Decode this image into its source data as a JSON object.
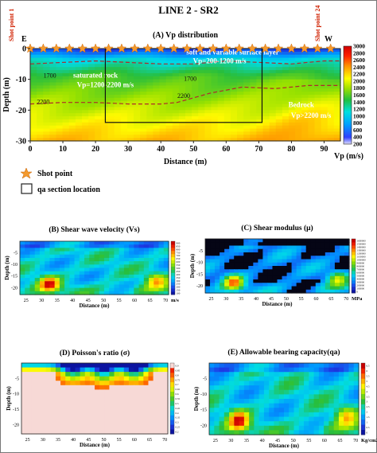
{
  "figure": {
    "title": "LINE 2 - SR2",
    "shot_point_start": "Shot point 1",
    "shot_point_end": "Shot point 24",
    "direction_left": "E",
    "direction_right": "W",
    "legend_shot": "Shot point",
    "legend_section": "qa section location"
  },
  "chart_data": [
    {
      "id": "A",
      "type": "heatmap",
      "title": "(A) Vp distribution",
      "xlabel": "Distance (m)",
      "ylabel": "Depth (m)",
      "colorbar_label": "Vp (m/s)",
      "xlim": [
        0,
        95
      ],
      "ylim": [
        -30,
        0
      ],
      "xticks": [
        0,
        10,
        20,
        30,
        40,
        50,
        60,
        70,
        80,
        90
      ],
      "yticks": [
        0,
        -10,
        -20,
        -30
      ],
      "colorbar_ticks": [
        200,
        400,
        600,
        800,
        1000,
        1200,
        1400,
        1600,
        1800,
        2000,
        2200,
        2400,
        2600,
        2800,
        3000
      ],
      "contours": [
        {
          "label": "1700",
          "points": [
            [
              0,
              -5
            ],
            [
              10,
              -4.5
            ],
            [
              20,
              -4
            ],
            [
              30,
              -4.5
            ],
            [
              40,
              -5
            ],
            [
              50,
              -5
            ],
            [
              60,
              -4
            ],
            [
              70,
              -4.5
            ],
            [
              80,
              -5
            ],
            [
              90,
              -4
            ],
            [
              95,
              -4
            ]
          ]
        },
        {
          "label": "2200",
          "points": [
            [
              0,
              -18
            ],
            [
              10,
              -17.5
            ],
            [
              20,
              -17.5
            ],
            [
              30,
              -18
            ],
            [
              40,
              -18
            ],
            [
              45,
              -17.5
            ],
            [
              55,
              -14.5
            ],
            [
              65,
              -12.5
            ],
            [
              75,
              -13
            ],
            [
              85,
              -12
            ],
            [
              95,
              -12
            ]
          ]
        }
      ],
      "contour_labels": [
        {
          "text": "1700",
          "x": 6,
          "y": -9.5
        },
        {
          "text": "1700",
          "x": 49,
          "y": -10.5
        },
        {
          "text": "2200",
          "x": 4,
          "y": -18
        },
        {
          "text": "2200",
          "x": 47,
          "y": -16
        }
      ],
      "layers": [
        {
          "text": "soft and variable surface layer",
          "x": 62,
          "y": -2
        },
        {
          "text": "Vp=200-1200 m/s",
          "x": 58,
          "y": -4.8
        },
        {
          "text": "saturated rock",
          "x": 20,
          "y": -9.5
        },
        {
          "text": "Vp=1200-2200 m/s",
          "x": 23,
          "y": -12.5
        },
        {
          "text": "Bedrock",
          "x": 83,
          "y": -19
        },
        {
          "text": "Vp>2200 m/s",
          "x": 86,
          "y": -22.5
        }
      ],
      "qa_box": {
        "x": [
          23,
          71
        ],
        "y": [
          0,
          -24
        ]
      },
      "shot_points": [
        0,
        4,
        8,
        12,
        16,
        20,
        24,
        28,
        32,
        36,
        40,
        44,
        48,
        52,
        56,
        60,
        64,
        68,
        72,
        76,
        80,
        84,
        88,
        92
      ]
    },
    {
      "id": "B",
      "type": "heatmap",
      "title": "(B) Shear wave velocity (Vs)",
      "xlabel": "Distance (m)",
      "ylabel": "Depth (m)",
      "colorbar_label": "m/s",
      "xlim": [
        23,
        71
      ],
      "ylim": [
        -23,
        0
      ],
      "xticks": [
        25,
        30,
        35,
        40,
        45,
        50,
        55,
        60,
        65,
        70
      ],
      "yticks": [
        -5,
        -10,
        -15,
        -20
      ],
      "colorbar_ticks": [
        100,
        150,
        200,
        250,
        300,
        350,
        400,
        450,
        500,
        550,
        600,
        650,
        700,
        750,
        800,
        850,
        900
      ],
      "hotspots": [
        {
          "x": 32.5,
          "y": -18.5,
          "v": 1.0
        },
        {
          "x": 67,
          "y": -17,
          "v": 0.65
        }
      ]
    },
    {
      "id": "C",
      "type": "heatmap",
      "title": "(C) Shear modulus (μ)",
      "xlabel": "Distance (m)",
      "ylabel": "Depth (m)",
      "colorbar_label": "MPa",
      "xlim": [
        23,
        71
      ],
      "ylim": [
        -23,
        0
      ],
      "xticks": [
        25,
        30,
        35,
        40,
        45,
        50,
        55,
        60,
        65,
        70
      ],
      "yticks": [
        -5,
        -10,
        -15,
        -20
      ],
      "colorbar_ticks": [
        0,
        100000,
        200000,
        300000,
        400000,
        500000,
        600000,
        700000,
        800000,
        900000,
        1000000,
        1100000,
        1200000,
        1300000,
        1400000,
        1500000,
        1600000
      ],
      "hotspots": [
        {
          "x": 32.5,
          "y": -18.5,
          "v": 1.0
        },
        {
          "x": 67,
          "y": -17,
          "v": 0.65
        }
      ]
    },
    {
      "id": "D",
      "type": "heatmap",
      "title": "(D) Poisson's ratio (σ)",
      "xlabel": "Distance (m)",
      "ylabel": "Depth (m)",
      "colorbar_label": "",
      "xlim": [
        23,
        71
      ],
      "ylim": [
        -23,
        0
      ],
      "xticks": [
        25,
        30,
        35,
        40,
        45,
        50,
        55,
        60,
        65,
        70
      ],
      "yticks": [
        -5,
        -10,
        -15,
        -20
      ],
      "colorbar_ticks": [
        0.2,
        0.25,
        0.3,
        0.35,
        0.4,
        0.45,
        0.5,
        0.55,
        0.6,
        0.65,
        0.7,
        0.75,
        0.8,
        0.85,
        0.9
      ],
      "hotspots": [
        {
          "x": 40,
          "y": -1,
          "v": 0.8
        },
        {
          "x": 50,
          "y": -1.5,
          "v": 0.6
        },
        {
          "x": 60,
          "y": -1,
          "v": 0.5
        }
      ]
    },
    {
      "id": "E",
      "type": "heatmap",
      "title": "(E) Allowable bearing capacity(qa)",
      "xlabel": "Distance (m)",
      "ylabel": "Depth (m)",
      "colorbar_label": "Kg/cm2",
      "xlim": [
        23,
        71
      ],
      "ylim": [
        -23,
        0
      ],
      "xticks": [
        25,
        30,
        35,
        40,
        45,
        50,
        55,
        60,
        65,
        70
      ],
      "yticks": [
        -5,
        -10,
        -15,
        -20
      ],
      "colorbar_ticks": [
        0,
        0.5,
        1,
        1.5,
        2,
        2.5,
        3,
        3.5,
        4,
        4.5,
        5,
        5.5,
        6,
        6.5
      ],
      "hotspots": [
        {
          "x": 32.5,
          "y": -18.5,
          "v": 1.0
        },
        {
          "x": 67,
          "y": -17,
          "v": 0.6
        }
      ]
    }
  ]
}
